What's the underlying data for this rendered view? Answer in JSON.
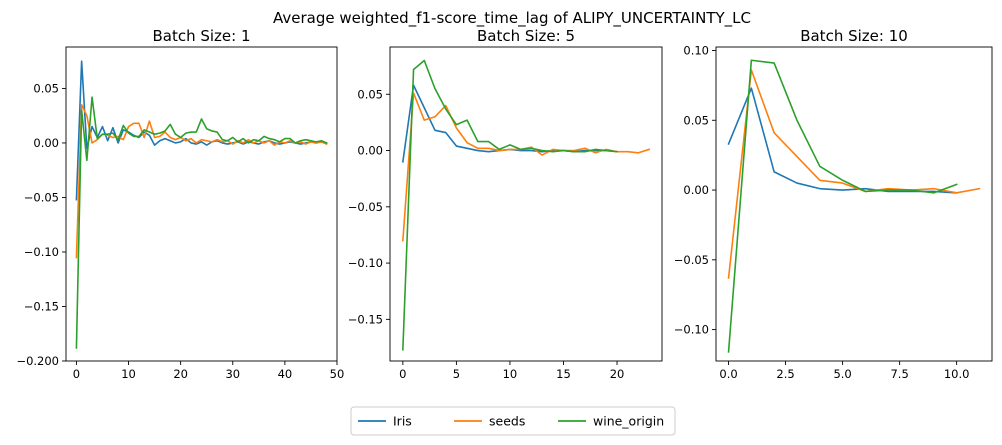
{
  "suptitle": "Average weighted_f1-score_time_lag of ALIPY_UNCERTAINTY_LC",
  "colors": {
    "Iris": "#1f77b4",
    "seeds": "#ff7f0e",
    "wine_origin": "#2ca02c"
  },
  "legend": {
    "placement": "bottom-center",
    "entries": [
      "Iris",
      "seeds",
      "wine_origin"
    ]
  },
  "chart_data": [
    {
      "type": "line",
      "title": "Batch Size: 1",
      "xlim": [
        -2,
        50
      ],
      "ylim": [
        -0.2,
        0.088
      ],
      "xticks": [
        0,
        10,
        20,
        30,
        40,
        50
      ],
      "xtick_labels": [
        "0",
        "10",
        "20",
        "30",
        "40",
        "50"
      ],
      "yticks": [
        -0.2,
        -0.15,
        -0.1,
        -0.05,
        0.0,
        0.05
      ],
      "ytick_labels": [
        "−0.200",
        "−0.15",
        "−0.10",
        "−0.05",
        "0.00",
        "0.05"
      ],
      "grid": false,
      "series": [
        {
          "name": "Iris",
          "x_start": 0,
          "x_step": 1,
          "values": [
            -0.052,
            0.075,
            -0.005,
            0.015,
            0.005,
            0.015,
            0.002,
            0.014,
            0.0,
            0.012,
            0.01,
            0.007,
            0.005,
            0.01,
            0.007,
            -0.002,
            0.002,
            0.004,
            0.002,
            0.0,
            0.001,
            0.004,
            0.0,
            -0.001,
            0.001,
            -0.002,
            0.001,
            0.002,
            0.0,
            -0.001,
            0.0,
            0.001,
            -0.001,
            0.001,
            0.0,
            -0.001,
            0.001,
            0.002,
            0.0,
            -0.001,
            0.0,
            0.001,
            0.0,
            -0.001,
            0.0,
            0.001,
            0.0,
            0.001,
            0.0
          ]
        },
        {
          "name": "seeds",
          "x_start": 0,
          "x_step": 1,
          "values": [
            -0.105,
            0.035,
            0.025,
            0.0,
            0.003,
            0.008,
            0.007,
            0.005,
            0.006,
            0.003,
            0.015,
            0.018,
            0.018,
            0.005,
            0.02,
            0.005,
            0.006,
            0.01,
            0.005,
            0.003,
            0.005,
            0.002,
            0.004,
            0.0,
            0.003,
            0.002,
            0.001,
            0.003,
            0.001,
            0.002,
            -0.001,
            0.002,
            0.0,
            0.003,
            0.0,
            0.002,
            0.0,
            0.002,
            -0.002,
            0.001,
            0.0,
            0.002,
            0.0,
            0.001,
            -0.001,
            0.001,
            0.0,
            0.001,
            -0.001
          ]
        },
        {
          "name": "wine_origin",
          "x_start": 0,
          "x_step": 1,
          "values": [
            -0.188,
            0.03,
            -0.016,
            0.042,
            0.004,
            0.008,
            0.008,
            0.009,
            0.003,
            0.016,
            0.009,
            0.006,
            0.006,
            0.012,
            0.01,
            0.008,
            0.009,
            0.011,
            0.017,
            0.008,
            0.005,
            0.009,
            0.01,
            0.01,
            0.022,
            0.013,
            0.011,
            0.01,
            0.003,
            0.002,
            0.005,
            0.001,
            0.004,
            0.0,
            0.003,
            0.002,
            0.006,
            0.004,
            0.003,
            0.001,
            0.004,
            0.004,
            0.0,
            0.002,
            0.003,
            0.002,
            0.001,
            0.002,
            0.0
          ]
        }
      ]
    },
    {
      "type": "line",
      "title": "Batch Size: 5",
      "xlim": [
        -1.2,
        24.2
      ],
      "ylim": [
        -0.187,
        0.092
      ],
      "xticks": [
        0,
        5,
        10,
        15,
        20
      ],
      "xtick_labels": [
        "0",
        "5",
        "10",
        "15",
        "20"
      ],
      "yticks": [
        -0.15,
        -0.1,
        -0.05,
        0.0,
        0.05
      ],
      "ytick_labels": [
        "−0.15",
        "−0.10",
        "−0.05",
        "0.00",
        "0.05"
      ],
      "grid": false,
      "series": [
        {
          "name": "Iris",
          "x_start": 0,
          "x_step": 1,
          "values": [
            -0.01,
            0.058,
            0.038,
            0.018,
            0.016,
            0.004,
            0.002,
            0.0,
            -0.001,
            0.0,
            0.001,
            0.0,
            0.0,
            -0.001,
            0.0,
            0.0,
            -0.001,
            0.0,
            0.0,
            0.0,
            -0.001
          ]
        },
        {
          "name": "seeds",
          "x_start": 0,
          "x_step": 1,
          "values": [
            -0.08,
            0.051,
            0.027,
            0.03,
            0.04,
            0.02,
            0.007,
            0.002,
            0.002,
            0.0,
            0.001,
            0.001,
            0.003,
            -0.004,
            0.001,
            0.0,
            0.0,
            0.002,
            -0.002,
            0.001,
            -0.001,
            -0.001,
            -0.002,
            0.001
          ]
        },
        {
          "name": "wine_origin",
          "x_start": 0,
          "x_step": 1,
          "values": [
            -0.177,
            0.072,
            0.08,
            0.055,
            0.037,
            0.023,
            0.027,
            0.008,
            0.008,
            0.001,
            0.005,
            0.001,
            0.002,
            0.0,
            -0.001,
            0.0,
            -0.001,
            -0.001,
            0.001,
            0.0,
            -0.001
          ]
        }
      ]
    },
    {
      "type": "line",
      "title": "Batch Size: 10",
      "xlim": [
        -0.55,
        11.55
      ],
      "ylim": [
        -0.1225,
        0.1025
      ],
      "xticks": [
        0,
        2.5,
        5,
        7.5,
        10
      ],
      "xtick_labels": [
        "0.0",
        "2.5",
        "5.0",
        "7.5",
        "10.0"
      ],
      "yticks": [
        -0.1,
        -0.05,
        0.0,
        0.05,
        0.1
      ],
      "ytick_labels": [
        "−0.10",
        "−0.05",
        "0.00",
        "0.05",
        "0.10"
      ],
      "grid": false,
      "series": [
        {
          "name": "Iris",
          "x_start": 0,
          "x_step": 1,
          "values": [
            0.033,
            0.073,
            0.013,
            0.005,
            0.001,
            0.0,
            0.001,
            -0.001,
            -0.001,
            -0.001,
            -0.002
          ]
        },
        {
          "name": "seeds",
          "x_start": 0,
          "x_step": 1,
          "values": [
            -0.063,
            0.086,
            0.041,
            0.024,
            0.007,
            0.005,
            -0.001,
            0.001,
            0.0,
            0.001,
            -0.002,
            0.001
          ]
        },
        {
          "name": "wine_origin",
          "x_start": 0,
          "x_step": 1,
          "values": [
            -0.116,
            0.093,
            0.091,
            0.05,
            0.017,
            0.007,
            -0.001,
            0.0,
            0.0,
            -0.002,
            0.004
          ]
        }
      ]
    }
  ]
}
